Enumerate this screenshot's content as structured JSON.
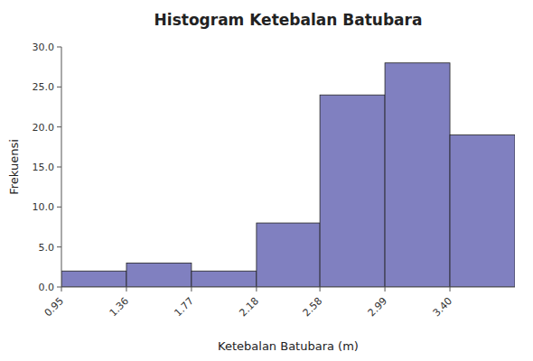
{
  "chart_data": {
    "type": "histogram",
    "title": "Histogram Ketebalan Batubara",
    "x_label": "Ketebalan Batubara (m)",
    "y_label": "Frekuensi",
    "bins": [
      0.95,
      1.36,
      1.77,
      2.18,
      2.58,
      2.99,
      3.4,
      3.81
    ],
    "values": [
      2,
      3,
      2,
      8,
      24,
      28,
      19
    ],
    "color": "#8080C0",
    "xlim": [
      0.95,
      3.81
    ],
    "xticks": [
      0.95,
      1.36,
      1.77,
      2.18,
      2.58,
      2.99,
      {
        "value": 3.4,
        "label": "3.40"
      }
    ],
    "ylim": [
      0,
      30.0
    ],
    "yticks": [
      {
        "value": 0,
        "label": "0.0"
      },
      {
        "value": 5,
        "label": "5.0"
      },
      {
        "value": 10,
        "label": "10.0"
      },
      {
        "value": 15,
        "label": "15.0"
      },
      {
        "value": 20,
        "label": "20.0"
      },
      {
        "value": 25,
        "label": "25.0"
      },
      {
        "value": 30,
        "label": "30.0"
      }
    ],
    "grid": false
  }
}
